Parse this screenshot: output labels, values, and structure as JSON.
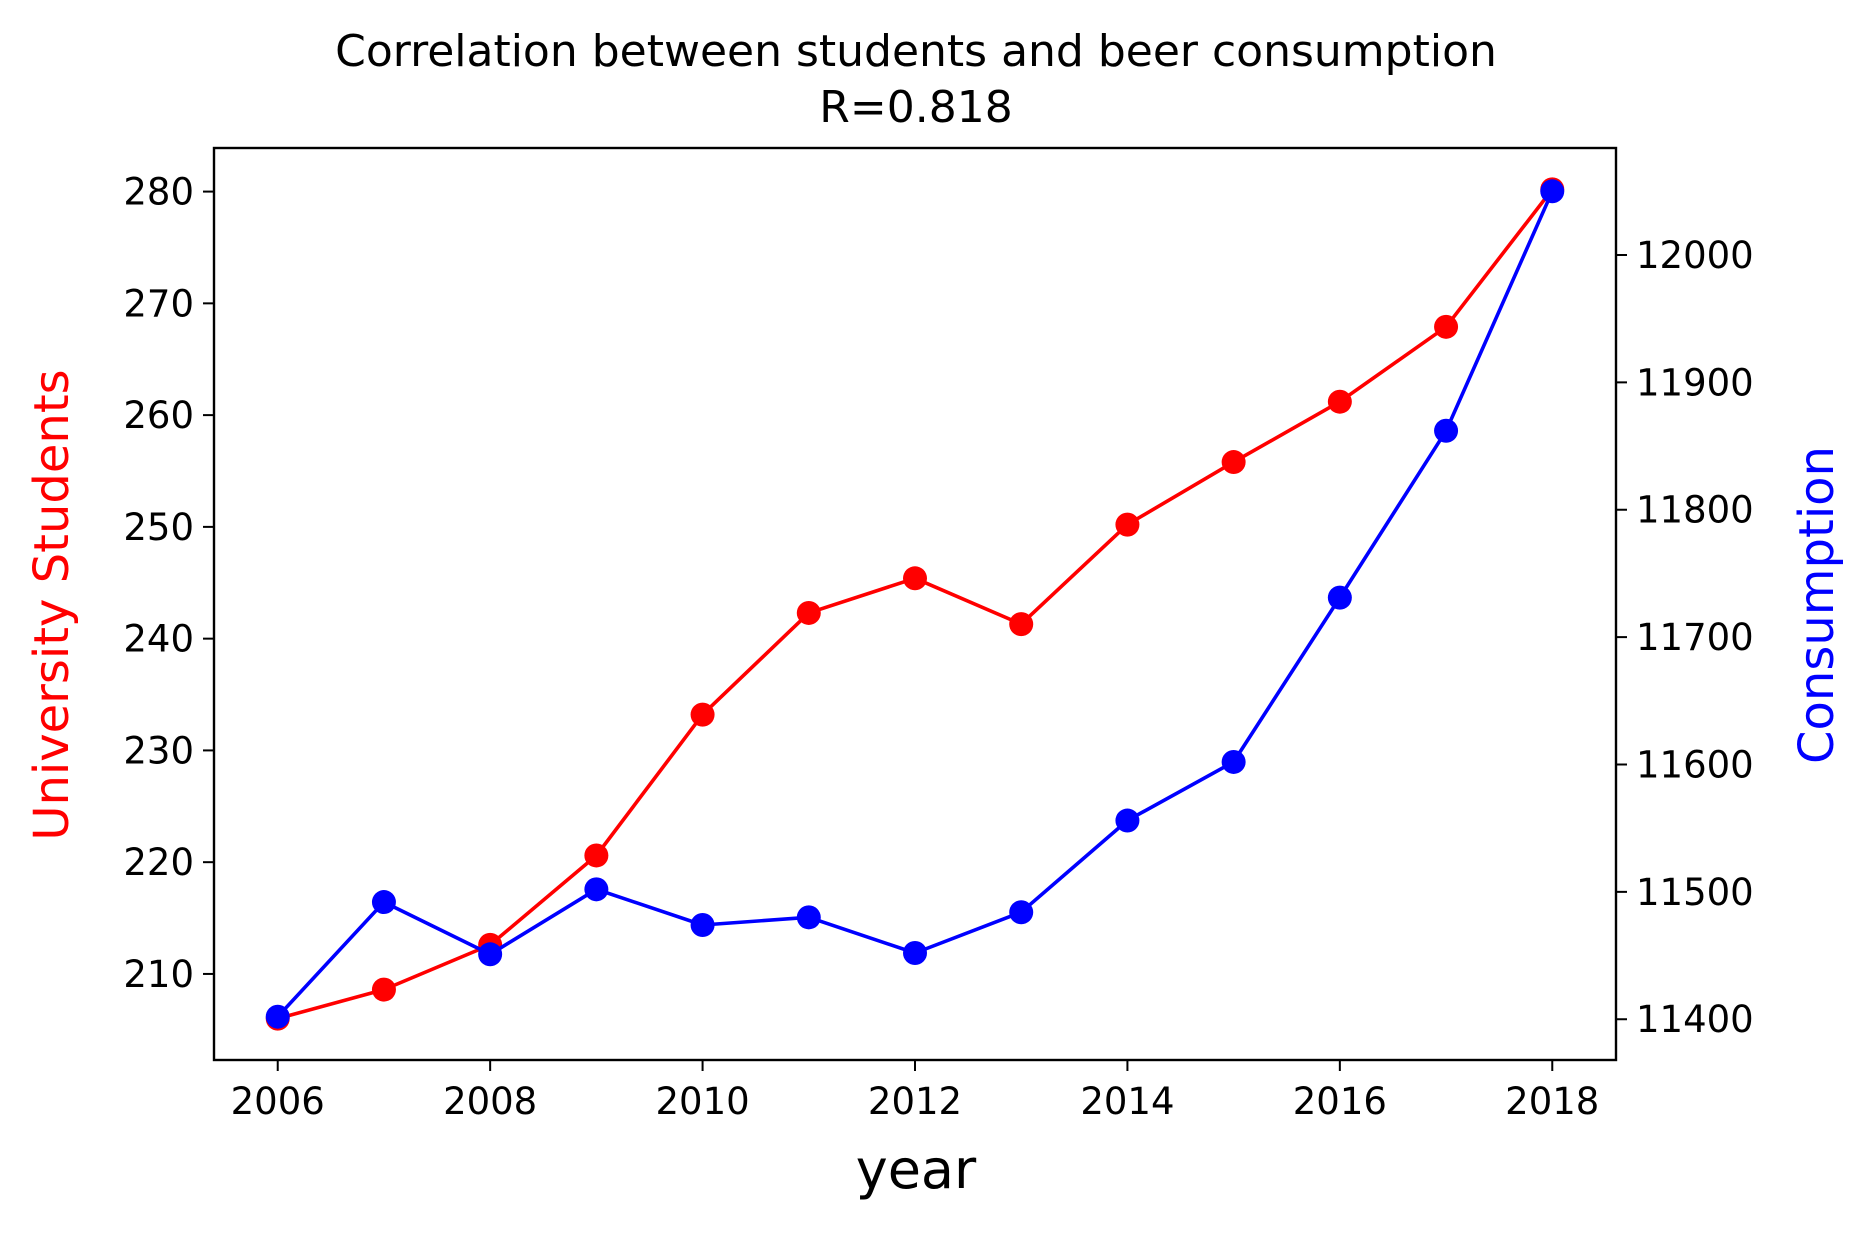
{
  "chart_data": {
    "type": "line",
    "title": "Correlation between students and beer consumption",
    "subtitle": "R=0.818",
    "xlabel": "year",
    "ylabel_left": "University Students",
    "ylabel_right": "Consumption",
    "x": [
      2006,
      2007,
      2008,
      2009,
      2010,
      2011,
      2012,
      2013,
      2014,
      2015,
      2016,
      2017,
      2018
    ],
    "xlim": [
      2005.4,
      2018.6
    ],
    "xticks": [
      "2006",
      "2008",
      "2010",
      "2012",
      "2014",
      "2016",
      "2018"
    ],
    "yticks_left": [
      "210",
      "220",
      "230",
      "240",
      "250",
      "260",
      "270",
      "280"
    ],
    "yticks_right": [
      "11400",
      "11500",
      "11600",
      "11700",
      "11800",
      "11900",
      "12000"
    ],
    "ylim_left": [
      202.3,
      283.9
    ],
    "ylim_right": [
      11368,
      12084
    ],
    "series": [
      {
        "name": "University Students",
        "axis": "left",
        "color": "#ff0000",
        "values": [
          206.0,
          208.6,
          212.6,
          220.6,
          233.2,
          242.3,
          245.4,
          241.3,
          250.2,
          255.8,
          261.2,
          267.9,
          280.2
        ]
      },
      {
        "name": "Consumption",
        "axis": "right",
        "color": "#0000ff",
        "values": [
          11402,
          11492,
          11451,
          11502,
          11474,
          11480,
          11452,
          11484,
          11556,
          11602,
          11731,
          11862,
          12050
        ]
      }
    ],
    "grid": false,
    "legend": "none"
  }
}
